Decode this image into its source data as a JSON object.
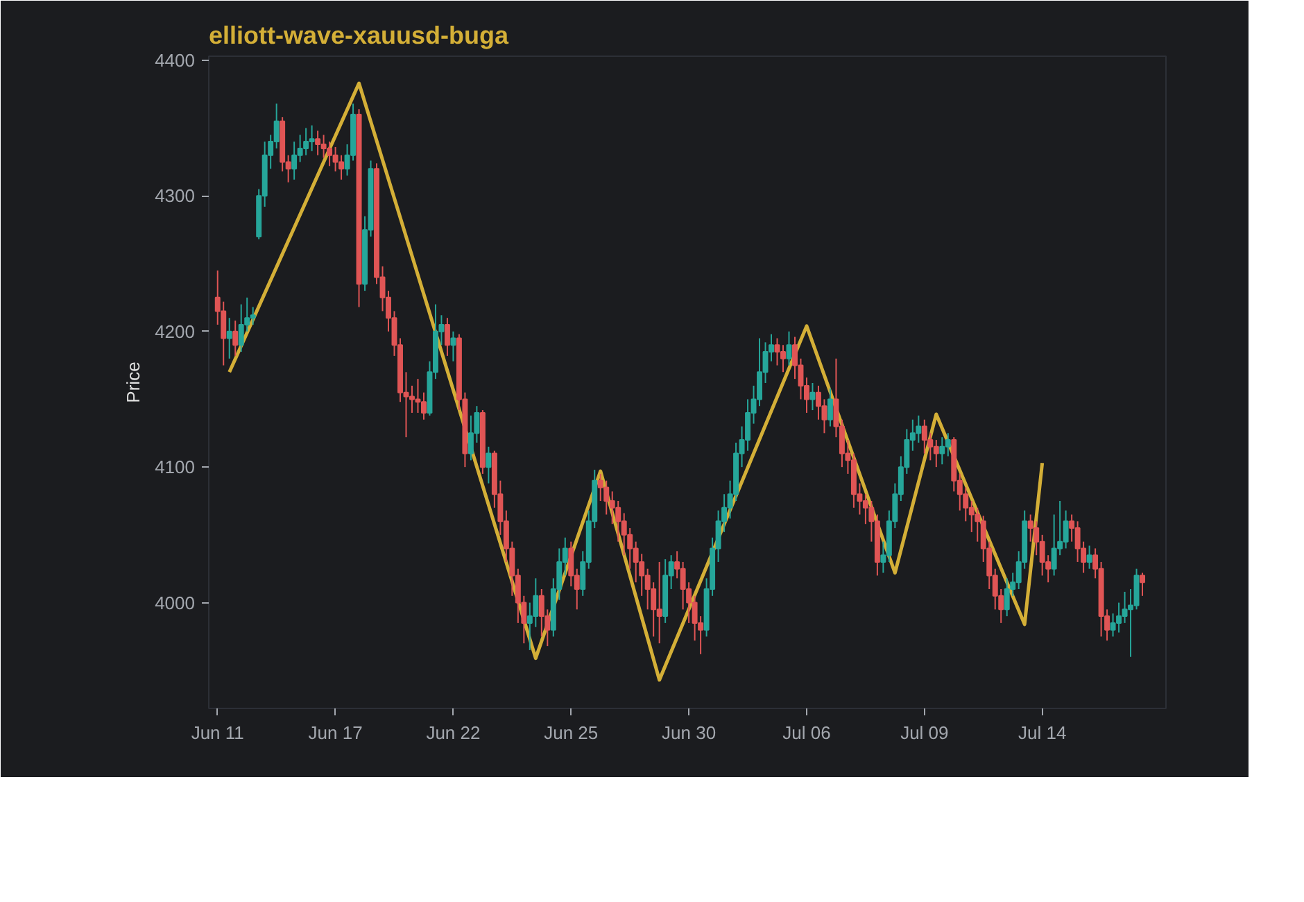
{
  "chart_data": {
    "type": "candlestick",
    "title": "elliott-wave-xauusd-buga",
    "ylabel": "Price",
    "categories": [
      "Jun 11",
      null,
      null,
      null,
      null,
      null,
      null,
      null,
      null,
      null,
      null,
      null,
      null,
      null,
      null,
      null,
      null,
      null,
      null,
      null,
      "Jun 17",
      null,
      null,
      null,
      null,
      null,
      null,
      null,
      null,
      null,
      null,
      null,
      null,
      null,
      null,
      null,
      null,
      null,
      null,
      null,
      "Jun 22",
      null,
      null,
      null,
      null,
      null,
      null,
      null,
      null,
      null,
      null,
      null,
      null,
      null,
      null,
      null,
      null,
      null,
      null,
      null,
      "Jun 25",
      null,
      null,
      null,
      null,
      null,
      null,
      null,
      null,
      null,
      null,
      null,
      null,
      null,
      null,
      null,
      null,
      null,
      null,
      null,
      "Jun 30",
      null,
      null,
      null,
      null,
      null,
      null,
      null,
      null,
      null,
      null,
      null,
      null,
      null,
      null,
      null,
      null,
      null,
      null,
      null,
      "Jul 06",
      null,
      null,
      null,
      null,
      null,
      null,
      null,
      null,
      null,
      null,
      null,
      null,
      null,
      null,
      null,
      null,
      null,
      null,
      null,
      "Jul 09",
      null,
      null,
      null,
      null,
      null,
      null,
      null,
      null,
      null,
      null,
      null,
      null,
      null,
      null,
      null,
      null,
      null,
      null,
      null,
      "Jul 14",
      null,
      null,
      null,
      null,
      null,
      null,
      null,
      null,
      null,
      null,
      null,
      null,
      null,
      null,
      null,
      null,
      null
    ],
    "ylim": [
      3922,
      4403
    ],
    "yticks": [
      4000,
      4100,
      4200,
      4300,
      4400
    ],
    "grid": false,
    "series": [
      {
        "type": "line",
        "color": "#d4af37",
        "values": [
          null,
          null,
          4170,
          null,
          null,
          null,
          null,
          null,
          null,
          null,
          null,
          null,
          null,
          null,
          null,
          null,
          null,
          null,
          null,
          null,
          null,
          null,
          null,
          null,
          4383,
          null,
          null,
          null,
          null,
          null,
          null,
          null,
          null,
          null,
          null,
          null,
          null,
          null,
          null,
          null,
          null,
          null,
          null,
          null,
          null,
          null,
          null,
          null,
          null,
          null,
          null,
          null,
          null,
          null,
          3959,
          null,
          null,
          null,
          null,
          null,
          null,
          null,
          null,
          null,
          null,
          4097,
          null,
          null,
          null,
          null,
          null,
          null,
          null,
          null,
          null,
          3943,
          null,
          null,
          null,
          null,
          null,
          null,
          null,
          null,
          null,
          null,
          null,
          null,
          null,
          null,
          null,
          null,
          null,
          null,
          null,
          null,
          null,
          null,
          null,
          null,
          4204,
          null,
          null,
          null,
          null,
          null,
          null,
          null,
          null,
          null,
          null,
          null,
          null,
          null,
          null,
          4022,
          null,
          null,
          null,
          null,
          null,
          null,
          4139,
          null,
          null,
          null,
          null,
          null,
          null,
          null,
          null,
          null,
          null,
          null,
          null,
          null,
          null,
          3984,
          null,
          null,
          4103,
          null,
          null,
          null,
          null,
          null,
          null,
          null,
          null,
          null,
          null,
          null,
          null,
          null,
          null,
          null,
          null,
          null
        ]
      },
      {
        "colors": [
          "#e05555",
          "#e05555",
          "#26a69a",
          "#e05555",
          "#26a69a",
          "#26a69a",
          "#26a69a",
          "#26a69a",
          "#26a69a",
          "#26a69a",
          "#26a69a",
          "#e05555",
          "#e05555",
          "#26a69a",
          "#26a69a",
          "#26a69a",
          "#26a69a",
          "#e05555",
          "#e05555",
          "#e05555",
          "#e05555",
          "#e05555",
          "#26a69a",
          "#26a69a",
          "#e05555",
          "#26a69a",
          "#26a69a",
          "#e05555",
          "#e05555",
          "#e05555",
          "#e05555",
          "#e05555",
          "#e05555",
          "#e05555",
          "#e05555",
          "#e05555",
          "#26a69a",
          "#26a69a",
          "#26a69a",
          "#e05555",
          "#26a69a",
          "#e05555",
          "#e05555",
          "#26a69a",
          "#26a69a",
          "#e05555",
          "#26a69a",
          "#e05555",
          "#e05555",
          "#e05555",
          "#e05555",
          "#e05555",
          "#e05555",
          "#26a69a",
          "#26a69a",
          "#e05555",
          "#e05555",
          "#26a69a",
          "#26a69a",
          "#26a69a",
          "#e05555",
          "#e05555",
          "#26a69a",
          "#26a69a",
          "#26a69a",
          "#e05555",
          "#e05555",
          "#e05555",
          "#e05555",
          "#e05555",
          "#e05555",
          "#e05555",
          "#e05555",
          "#e05555",
          "#e05555",
          "#e05555",
          "#26a69a",
          "#26a69a",
          "#e05555",
          "#e05555",
          "#e05555",
          "#e05555",
          "#e05555",
          "#26a69a",
          "#26a69a",
          "#26a69a",
          "#26a69a",
          "#26a69a",
          "#26a69a",
          "#26a69a",
          "#26a69a",
          "#26a69a",
          "#26a69a",
          "#26a69a",
          "#26a69a",
          "#e05555",
          "#e05555",
          "#26a69a",
          "#e05555",
          "#e05555",
          "#e05555",
          "#26a69a",
          "#e05555",
          "#e05555",
          "#26a69a",
          "#e05555",
          "#e05555",
          "#e05555",
          "#e05555",
          "#e05555",
          "#e05555",
          "#e05555",
          "#e05555",
          "#26a69a",
          "#26a69a",
          "#26a69a",
          "#26a69a",
          "#26a69a",
          "#26a69a",
          "#26a69a",
          "#e05555",
          "#e05555",
          "#e05555",
          "#26a69a",
          "#26a69a",
          "#e05555",
          "#e05555",
          "#e05555",
          "#e05555",
          "#e05555",
          "#e05555",
          "#e05555",
          "#e05555",
          "#e05555",
          "#26a69a",
          "#26a69a",
          "#26a69a",
          "#26a69a",
          "#e05555",
          "#e05555",
          "#e05555",
          "#e05555",
          "#26a69a",
          "#26a69a",
          "#26a69a",
          "#e05555",
          "#e05555",
          "#e05555",
          "#26a69a",
          "#e05555",
          "#e05555",
          "#e05555",
          "#26a69a",
          "#26a69a",
          "#26a69a",
          "#26a69a",
          "#26a69a",
          "#e05555"
        ],
        "ohlc": [
          [
            4225,
            4245,
            4205,
            4215
          ],
          [
            4215,
            4222,
            4175,
            4195
          ],
          [
            4195,
            4210,
            4180,
            4200
          ],
          [
            4200,
            4208,
            4182,
            4190
          ],
          [
            4190,
            4220,
            4185,
            4205
          ],
          [
            4205,
            4225,
            4200,
            4210
          ],
          [
            4210,
            4218,
            4205,
            4212
          ],
          [
            4270,
            4305,
            4268,
            4300
          ],
          [
            4300,
            4340,
            4292,
            4330
          ],
          [
            4330,
            4345,
            4320,
            4340
          ],
          [
            4340,
            4368,
            4335,
            4355
          ],
          [
            4355,
            4358,
            4318,
            4325
          ],
          [
            4325,
            4330,
            4310,
            4320
          ],
          [
            4320,
            4340,
            4312,
            4330
          ],
          [
            4330,
            4345,
            4325,
            4335
          ],
          [
            4335,
            4350,
            4330,
            4340
          ],
          [
            4340,
            4352,
            4333,
            4342
          ],
          [
            4342,
            4348,
            4330,
            4338
          ],
          [
            4338,
            4345,
            4328,
            4335
          ],
          [
            4335,
            4340,
            4322,
            4330
          ],
          [
            4330,
            4336,
            4318,
            4325
          ],
          [
            4325,
            4330,
            4312,
            4320
          ],
          [
            4320,
            4338,
            4315,
            4330
          ],
          [
            4330,
            4368,
            4326,
            4360
          ],
          [
            4360,
            4364,
            4218,
            4235
          ],
          [
            4235,
            4285,
            4230,
            4275
          ],
          [
            4275,
            4326,
            4270,
            4320
          ],
          [
            4320,
            4324,
            4235,
            4240
          ],
          [
            4240,
            4248,
            4215,
            4225
          ],
          [
            4225,
            4230,
            4200,
            4210
          ],
          [
            4210,
            4215,
            4182,
            4190
          ],
          [
            4190,
            4195,
            4148,
            4155
          ],
          [
            4155,
            4170,
            4122,
            4152
          ],
          [
            4152,
            4160,
            4140,
            4150
          ],
          [
            4150,
            4165,
            4140,
            4148
          ],
          [
            4148,
            4155,
            4135,
            4140
          ],
          [
            4140,
            4178,
            4138,
            4170
          ],
          [
            4170,
            4220,
            4165,
            4200
          ],
          [
            4200,
            4212,
            4190,
            4205
          ],
          [
            4205,
            4210,
            4182,
            4190
          ],
          [
            4190,
            4200,
            4178,
            4195
          ],
          [
            4195,
            4198,
            4142,
            4150
          ],
          [
            4150,
            4155,
            4100,
            4110
          ],
          [
            4110,
            4138,
            4105,
            4125
          ],
          [
            4125,
            4145,
            4118,
            4140
          ],
          [
            4140,
            4142,
            4095,
            4100
          ],
          [
            4100,
            4115,
            4088,
            4110
          ],
          [
            4110,
            4112,
            4070,
            4080
          ],
          [
            4080,
            4090,
            4050,
            4060
          ],
          [
            4060,
            4068,
            4030,
            4040
          ],
          [
            4040,
            4045,
            4005,
            4020
          ],
          [
            4020,
            4025,
            3985,
            4000
          ],
          [
            4000,
            4005,
            3970,
            3985
          ],
          [
            3985,
            4000,
            3965,
            3990
          ],
          [
            3990,
            4018,
            3982,
            4005
          ],
          [
            4005,
            4010,
            3975,
            3990
          ],
          [
            3990,
            3995,
            3968,
            3980
          ],
          [
            3980,
            4018,
            3975,
            4010
          ],
          [
            4010,
            4040,
            4002,
            4030
          ],
          [
            4030,
            4048,
            4020,
            4040
          ],
          [
            4040,
            4045,
            4012,
            4020
          ],
          [
            4020,
            4025,
            3995,
            4010
          ],
          [
            4010,
            4038,
            4005,
            4030
          ],
          [
            4030,
            4068,
            4025,
            4060
          ],
          [
            4060,
            4098,
            4055,
            4090
          ],
          [
            4090,
            4095,
            4075,
            4085
          ],
          [
            4085,
            4090,
            4065,
            4075
          ],
          [
            4075,
            4082,
            4058,
            4070
          ],
          [
            4070,
            4075,
            4045,
            4060
          ],
          [
            4060,
            4066,
            4035,
            4050
          ],
          [
            4050,
            4055,
            4025,
            4040
          ],
          [
            4040,
            4045,
            4015,
            4030
          ],
          [
            4030,
            4036,
            4005,
            4020
          ],
          [
            4020,
            4025,
            3995,
            4010
          ],
          [
            4010,
            4015,
            3975,
            3995
          ],
          [
            3995,
            4030,
            3970,
            3990
          ],
          [
            3990,
            4032,
            3985,
            4020
          ],
          [
            4020,
            4035,
            4010,
            4030
          ],
          [
            4030,
            4038,
            4018,
            4025
          ],
          [
            4025,
            4030,
            3995,
            4010
          ],
          [
            4010,
            4015,
            3985,
            4000
          ],
          [
            4000,
            4005,
            3972,
            3985
          ],
          [
            3985,
            3990,
            3962,
            3980
          ],
          [
            3980,
            4018,
            3975,
            4010
          ],
          [
            4010,
            4048,
            4005,
            4040
          ],
          [
            4040,
            4068,
            4030,
            4060
          ],
          [
            4060,
            4080,
            4052,
            4070
          ],
          [
            4070,
            4090,
            4062,
            4080
          ],
          [
            4080,
            4118,
            4075,
            4110
          ],
          [
            4110,
            4130,
            4100,
            4120
          ],
          [
            4120,
            4150,
            4112,
            4140
          ],
          [
            4140,
            4160,
            4132,
            4150
          ],
          [
            4150,
            4195,
            4145,
            4170
          ],
          [
            4170,
            4192,
            4162,
            4185
          ],
          [
            4185,
            4198,
            4178,
            4190
          ],
          [
            4190,
            4195,
            4175,
            4185
          ],
          [
            4185,
            4190,
            4170,
            4180
          ],
          [
            4180,
            4200,
            4175,
            4190
          ],
          [
            4190,
            4196,
            4165,
            4175
          ],
          [
            4175,
            4180,
            4150,
            4160
          ],
          [
            4160,
            4166,
            4140,
            4150
          ],
          [
            4150,
            4162,
            4142,
            4155
          ],
          [
            4155,
            4160,
            4135,
            4145
          ],
          [
            4145,
            4150,
            4125,
            4135
          ],
          [
            4135,
            4158,
            4130,
            4150
          ],
          [
            4150,
            4180,
            4122,
            4130
          ],
          [
            4130,
            4135,
            4100,
            4110
          ],
          [
            4110,
            4120,
            4095,
            4105
          ],
          [
            4105,
            4110,
            4070,
            4080
          ],
          [
            4080,
            4088,
            4065,
            4075
          ],
          [
            4075,
            4080,
            4058,
            4070
          ],
          [
            4070,
            4075,
            4045,
            4060
          ],
          [
            4060,
            4065,
            4020,
            4030
          ],
          [
            4030,
            4045,
            4022,
            4035
          ],
          [
            4035,
            4068,
            4030,
            4060
          ],
          [
            4060,
            4088,
            4055,
            4080
          ],
          [
            4080,
            4108,
            4075,
            4100
          ],
          [
            4100,
            4128,
            4095,
            4120
          ],
          [
            4120,
            4135,
            4112,
            4125
          ],
          [
            4125,
            4138,
            4118,
            4130
          ],
          [
            4130,
            4135,
            4110,
            4120
          ],
          [
            4120,
            4125,
            4105,
            4115
          ],
          [
            4115,
            4120,
            4100,
            4110
          ],
          [
            4110,
            4122,
            4102,
            4115
          ],
          [
            4115,
            4125,
            4108,
            4120
          ],
          [
            4120,
            4122,
            4082,
            4090
          ],
          [
            4090,
            4095,
            4068,
            4080
          ],
          [
            4080,
            4085,
            4060,
            4070
          ],
          [
            4070,
            4075,
            4052,
            4065
          ],
          [
            4065,
            4070,
            4045,
            4060
          ],
          [
            4060,
            4064,
            4030,
            4040
          ],
          [
            4040,
            4045,
            4010,
            4020
          ],
          [
            4020,
            4025,
            3995,
            4005
          ],
          [
            4005,
            4010,
            3985,
            3995
          ],
          [
            3995,
            4018,
            3990,
            4010
          ],
          [
            4010,
            4022,
            4005,
            4015
          ],
          [
            4015,
            4038,
            4010,
            4030
          ],
          [
            4030,
            4068,
            4025,
            4060
          ],
          [
            4060,
            4065,
            4045,
            4055
          ],
          [
            4055,
            4060,
            4035,
            4045
          ],
          [
            4045,
            4050,
            4020,
            4030
          ],
          [
            4030,
            4035,
            4015,
            4025
          ],
          [
            4025,
            4065,
            4020,
            4040
          ],
          [
            4040,
            4075,
            4035,
            4045
          ],
          [
            4045,
            4068,
            4040,
            4060
          ],
          [
            4060,
            4065,
            4045,
            4055
          ],
          [
            4055,
            4060,
            4030,
            4040
          ],
          [
            4040,
            4045,
            4022,
            4030
          ],
          [
            4030,
            4042,
            4025,
            4035
          ],
          [
            4035,
            4040,
            4018,
            4025
          ],
          [
            4025,
            4030,
            3975,
            3990
          ],
          [
            3990,
            3995,
            3972,
            3980
          ],
          [
            3980,
            3992,
            3975,
            3985
          ],
          [
            3985,
            4000,
            3978,
            3990
          ],
          [
            3990,
            4008,
            3985,
            3995
          ],
          [
            3995,
            4010,
            3960,
            3998
          ],
          [
            3998,
            4025,
            3995,
            4020
          ],
          [
            4020,
            4022,
            4005,
            4015
          ]
        ]
      }
    ]
  }
}
